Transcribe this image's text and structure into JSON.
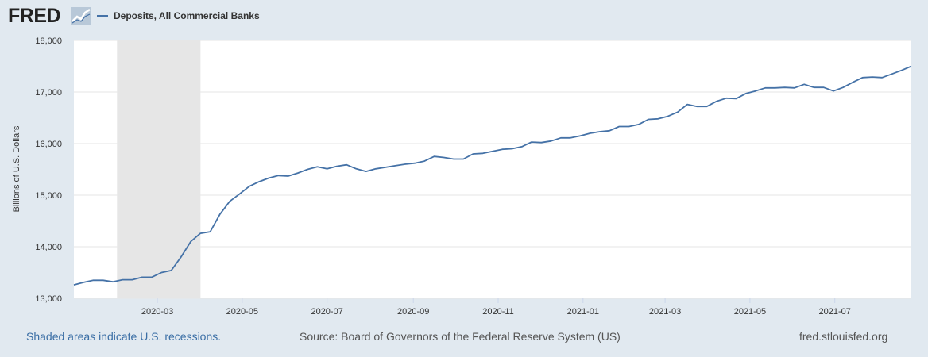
{
  "header": {
    "logo_text": "FRED",
    "logo_icon": "line-chart-icon",
    "legend_label": "Deposits, All Commercial Banks"
  },
  "colors": {
    "series": "#4572a7",
    "recession_shade": "#e6e6e6",
    "background": "#e1e9f0",
    "plot_background": "#ffffff",
    "gridline": "#e6e6e6"
  },
  "chart_data": {
    "type": "line",
    "title": "",
    "xlabel": "",
    "ylabel": "Billions of U.S. Dollars",
    "ylim": [
      13000,
      18000
    ],
    "xlim": [
      "2020-01-01",
      "2021-08-25"
    ],
    "yticks": [
      13000,
      14000,
      15000,
      16000,
      17000,
      18000
    ],
    "ytick_labels": [
      "13,000",
      "14,000",
      "15,000",
      "16,000",
      "17,000",
      "18,000"
    ],
    "xticks": [
      "2020-03-01",
      "2020-05-01",
      "2020-07-01",
      "2020-09-01",
      "2020-11-01",
      "2021-01-01",
      "2021-03-01",
      "2021-05-01",
      "2021-07-01"
    ],
    "xtick_labels": [
      "2020-03",
      "2020-05",
      "2020-07",
      "2020-09",
      "2020-11",
      "2021-01",
      "2021-03",
      "2021-05",
      "2021-07"
    ],
    "grid": true,
    "legend_position": "top-left",
    "recessions": [
      {
        "start": "2020-02-01",
        "end": "2020-04-01"
      }
    ],
    "series": [
      {
        "name": "Deposits, All Commercial Banks",
        "x": [
          "2020-01-01",
          "2020-01-08",
          "2020-01-15",
          "2020-01-22",
          "2020-01-29",
          "2020-02-05",
          "2020-02-12",
          "2020-02-19",
          "2020-02-26",
          "2020-03-04",
          "2020-03-11",
          "2020-03-18",
          "2020-03-25",
          "2020-04-01",
          "2020-04-08",
          "2020-04-15",
          "2020-04-22",
          "2020-04-29",
          "2020-05-06",
          "2020-05-13",
          "2020-05-20",
          "2020-05-27",
          "2020-06-03",
          "2020-06-10",
          "2020-06-17",
          "2020-06-24",
          "2020-07-01",
          "2020-07-08",
          "2020-07-15",
          "2020-07-22",
          "2020-07-29",
          "2020-08-05",
          "2020-08-12",
          "2020-08-19",
          "2020-08-26",
          "2020-09-02",
          "2020-09-09",
          "2020-09-16",
          "2020-09-23",
          "2020-09-30",
          "2020-10-07",
          "2020-10-14",
          "2020-10-21",
          "2020-10-28",
          "2020-11-04",
          "2020-11-11",
          "2020-11-18",
          "2020-11-25",
          "2020-12-02",
          "2020-12-09",
          "2020-12-16",
          "2020-12-23",
          "2020-12-30",
          "2021-01-06",
          "2021-01-13",
          "2021-01-20",
          "2021-01-27",
          "2021-02-03",
          "2021-02-10",
          "2021-02-17",
          "2021-02-24",
          "2021-03-03",
          "2021-03-10",
          "2021-03-17",
          "2021-03-24",
          "2021-03-31",
          "2021-04-07",
          "2021-04-14",
          "2021-04-21",
          "2021-04-28",
          "2021-05-05",
          "2021-05-12",
          "2021-05-19",
          "2021-05-26",
          "2021-06-02",
          "2021-06-09",
          "2021-06-16",
          "2021-06-23",
          "2021-06-30",
          "2021-07-07",
          "2021-07-14",
          "2021-07-21",
          "2021-07-28",
          "2021-08-04",
          "2021-08-11",
          "2021-08-18",
          "2021-08-25"
        ],
        "values": [
          13260,
          13310,
          13350,
          13350,
          13320,
          13360,
          13360,
          13410,
          13410,
          13500,
          13540,
          13800,
          14100,
          14260,
          14290,
          14630,
          14880,
          15020,
          15170,
          15260,
          15330,
          15380,
          15370,
          15430,
          15500,
          15550,
          15510,
          15560,
          15590,
          15510,
          15460,
          15510,
          15540,
          15570,
          15600,
          15620,
          15660,
          15750,
          15730,
          15700,
          15700,
          15800,
          15810,
          15850,
          15890,
          15900,
          15940,
          16030,
          16020,
          16050,
          16110,
          16110,
          16150,
          16200,
          16230,
          16250,
          16330,
          16330,
          16370,
          16470,
          16480,
          16530,
          16610,
          16760,
          16720,
          16720,
          16820,
          16880,
          16870,
          16970,
          17020,
          17080,
          17080,
          17090,
          17080,
          17150,
          17090,
          17090,
          17020,
          17090,
          17190,
          17280,
          17290,
          17280,
          17350,
          17420,
          17500
        ]
      }
    ]
  },
  "footer": {
    "recession_note": "Shaded areas indicate U.S. recessions.",
    "source": "Source: Board of Governors of the Federal Reserve System (US)",
    "site": "fred.stlouisfed.org"
  }
}
